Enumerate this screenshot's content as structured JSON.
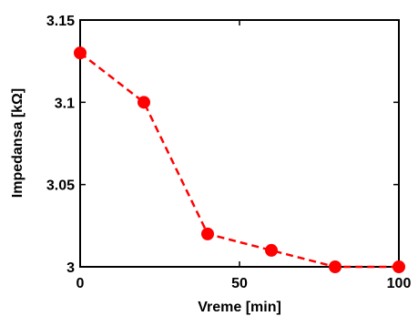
{
  "chart_data": {
    "type": "line",
    "title": "",
    "xlabel": "Vreme [min]",
    "ylabel": "Impedansa [kΩ]",
    "xlim": [
      0,
      100
    ],
    "ylim": [
      3,
      3.15
    ],
    "x_ticks": [
      0,
      50,
      100
    ],
    "x_tick_labels": [
      "0",
      "50",
      "100"
    ],
    "y_ticks": [
      3,
      3.05,
      3.1,
      3.15
    ],
    "y_tick_labels": [
      "3",
      "3.05",
      "3.1",
      "3.15"
    ],
    "grid": false,
    "legend": "none",
    "series": [
      {
        "x": [
          0,
          20,
          40,
          60,
          80,
          100
        ],
        "y": [
          3.13,
          3.1,
          3.02,
          3.01,
          3.0,
          3.0
        ],
        "color": "#ff0000",
        "line_style": "dashed",
        "marker": "circle"
      }
    ]
  }
}
